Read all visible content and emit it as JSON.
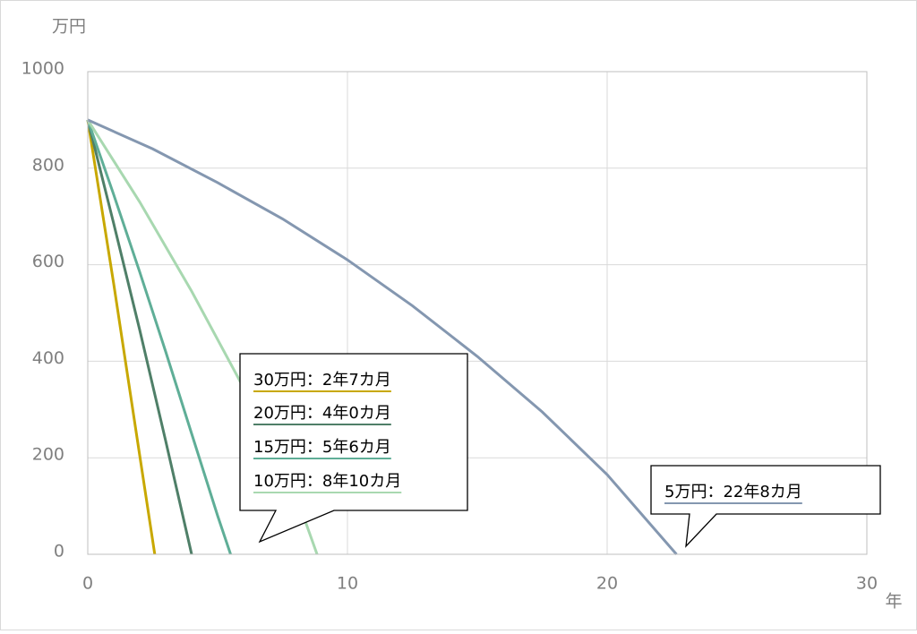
{
  "chart_data": {
    "type": "line",
    "y_unit": "万円",
    "x_unit": "年",
    "xlim": [
      0,
      30
    ],
    "xticks": [
      0,
      10,
      20,
      30
    ],
    "ylim": [
      0,
      1000
    ],
    "yticks": [
      0,
      200,
      400,
      600,
      800,
      1000
    ],
    "grid": true,
    "series": [
      {
        "name": "30万円：2年7カ月",
        "color": "#c8a800",
        "x": [
          0,
          1,
          2,
          2.58
        ],
        "values": [
          900,
          560,
          205,
          0
        ]
      },
      {
        "name": "20万円：4年0カ月",
        "color": "#4f7f68",
        "x": [
          0,
          1,
          2,
          3,
          4
        ],
        "values": [
          900,
          685,
          465,
          235,
          0
        ]
      },
      {
        "name": "15万円：5年6カ月",
        "color": "#5fae97",
        "x": [
          0,
          1,
          2,
          3,
          4,
          5,
          5.5
        ],
        "values": [
          900,
          745,
          585,
          420,
          250,
          80,
          0
        ]
      },
      {
        "name": "10万円：8年10カ月",
        "color": "#a8d8b0",
        "x": [
          0,
          2,
          4,
          6,
          8,
          8.83
        ],
        "values": [
          900,
          730,
          545,
          345,
          125,
          0
        ]
      },
      {
        "name": "5万円：22年8カ月",
        "color": "#8497b0",
        "x": [
          0,
          2.5,
          5,
          7.5,
          10,
          12.5,
          15,
          17.5,
          20,
          22.67
        ],
        "values": [
          900,
          840,
          770,
          695,
          610,
          515,
          410,
          295,
          165,
          0
        ]
      }
    ]
  }
}
